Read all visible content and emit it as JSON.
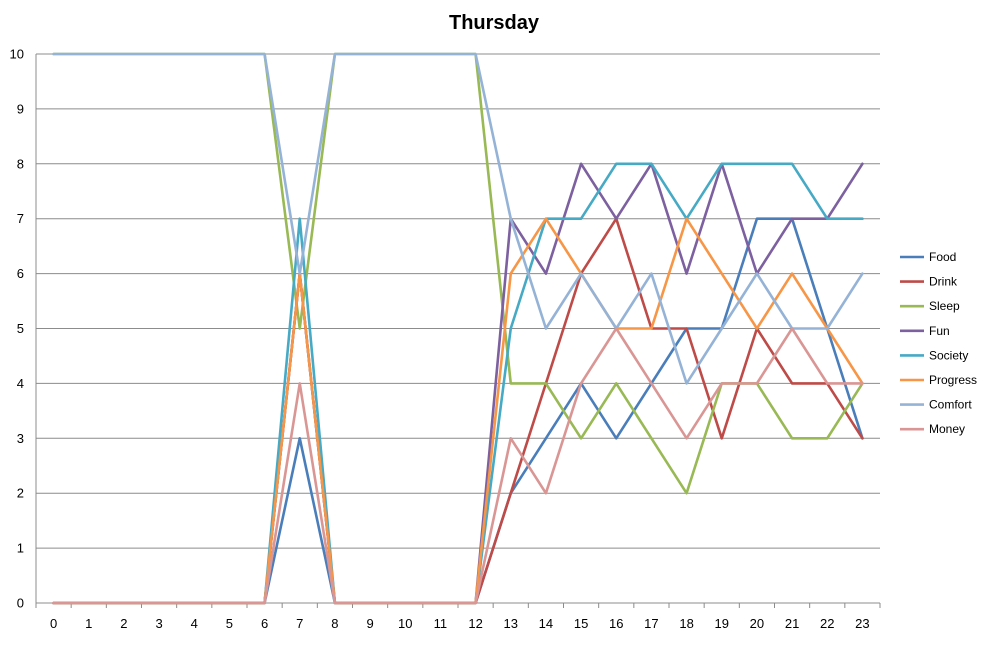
{
  "chart_data": {
    "type": "line",
    "title": "Thursday",
    "xlabel": "",
    "ylabel": "",
    "x": [
      0,
      1,
      2,
      3,
      4,
      5,
      6,
      7,
      8,
      9,
      10,
      11,
      12,
      13,
      14,
      15,
      16,
      17,
      18,
      19,
      20,
      21,
      22,
      23
    ],
    "ylim": [
      0,
      10
    ],
    "yticks": [
      0,
      1,
      2,
      3,
      4,
      5,
      6,
      7,
      8,
      9,
      10
    ],
    "grid": true,
    "legend_position": "right",
    "series": [
      {
        "name": "Food",
        "color": "#4a7ebb",
        "values": [
          0,
          0,
          0,
          0,
          0,
          0,
          0,
          3,
          0,
          0,
          0,
          0,
          0,
          2,
          3,
          4,
          3,
          4,
          5,
          5,
          7,
          7,
          5,
          3
        ]
      },
      {
        "name": "Drink",
        "color": "#be4b48",
        "values": [
          0,
          0,
          0,
          0,
          0,
          0,
          0,
          6,
          0,
          0,
          0,
          0,
          0,
          2,
          4,
          6,
          7,
          5,
          5,
          3,
          5,
          4,
          4,
          3
        ]
      },
      {
        "name": "Sleep",
        "color": "#98b954",
        "values": [
          10,
          10,
          10,
          10,
          10,
          10,
          10,
          5,
          10,
          10,
          10,
          10,
          10,
          4,
          4,
          3,
          4,
          3,
          2,
          4,
          4,
          3,
          3,
          4
        ]
      },
      {
        "name": "Fun",
        "color": "#7d60a0",
        "values": [
          0,
          0,
          0,
          0,
          0,
          0,
          0,
          6,
          0,
          0,
          0,
          0,
          0,
          7,
          6,
          8,
          7,
          8,
          6,
          8,
          6,
          7,
          7,
          8
        ]
      },
      {
        "name": "Society",
        "color": "#46aac5",
        "values": [
          0,
          0,
          0,
          0,
          0,
          0,
          0,
          7,
          0,
          0,
          0,
          0,
          0,
          5,
          7,
          7,
          8,
          8,
          7,
          8,
          8,
          8,
          7,
          7
        ]
      },
      {
        "name": "Progress",
        "color": "#f79646",
        "values": [
          0,
          0,
          0,
          0,
          0,
          0,
          0,
          6,
          0,
          0,
          0,
          0,
          0,
          6,
          7,
          6,
          5,
          5,
          7,
          6,
          5,
          6,
          5,
          4
        ]
      },
      {
        "name": "Comfort",
        "color": "#95b3d7",
        "values": [
          10,
          10,
          10,
          10,
          10,
          10,
          10,
          6,
          10,
          10,
          10,
          10,
          10,
          7,
          5,
          6,
          5,
          6,
          4,
          5,
          6,
          5,
          5,
          6
        ]
      },
      {
        "name": "Money",
        "color": "#d99694",
        "values": [
          0,
          0,
          0,
          0,
          0,
          0,
          0,
          4,
          0,
          0,
          0,
          0,
          0,
          3,
          2,
          4,
          5,
          4,
          3,
          4,
          4,
          5,
          4,
          4
        ]
      }
    ]
  }
}
